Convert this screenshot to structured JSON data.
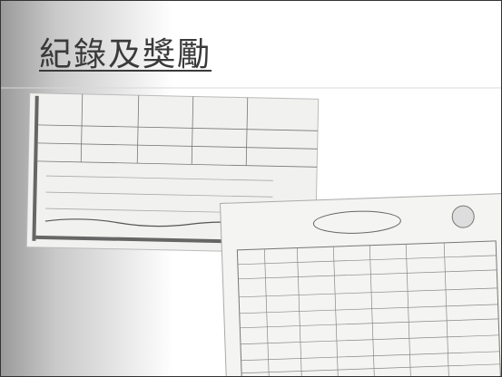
{
  "header": {
    "title": "紀錄及獎勵"
  }
}
